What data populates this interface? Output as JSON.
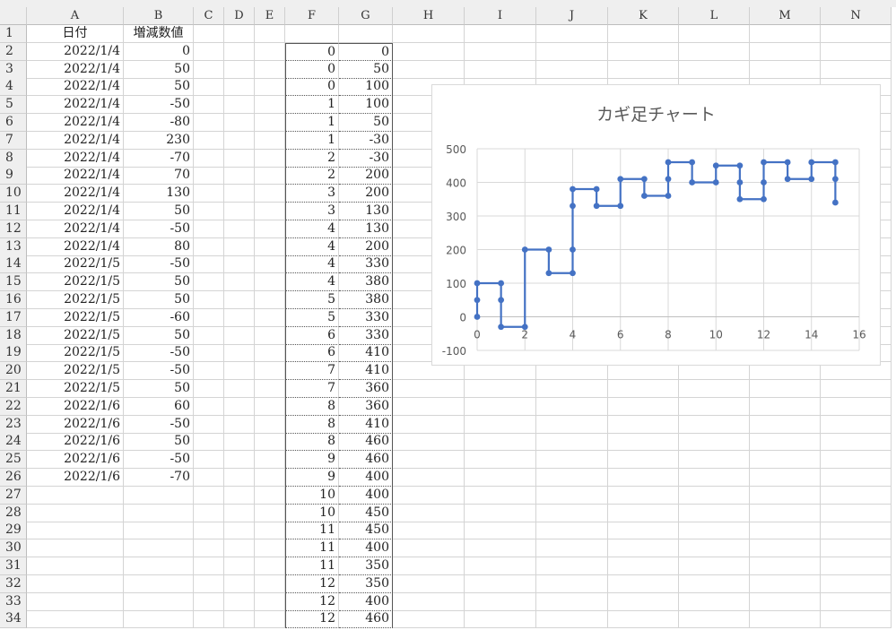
{
  "columns": [
    "A",
    "B",
    "C",
    "D",
    "E",
    "F",
    "G",
    "H",
    "I",
    "J",
    "K",
    "L",
    "M",
    "N"
  ],
  "headers": {
    "A": "日付",
    "B": "増減数値"
  },
  "rows_ab": [
    [
      "2022/1/4",
      "0"
    ],
    [
      "2022/1/4",
      "50"
    ],
    [
      "2022/1/4",
      "50"
    ],
    [
      "2022/1/4",
      "-50"
    ],
    [
      "2022/1/4",
      "-80"
    ],
    [
      "2022/1/4",
      "230"
    ],
    [
      "2022/1/4",
      "-70"
    ],
    [
      "2022/1/4",
      "70"
    ],
    [
      "2022/1/4",
      "130"
    ],
    [
      "2022/1/4",
      "50"
    ],
    [
      "2022/1/4",
      "-50"
    ],
    [
      "2022/1/4",
      "80"
    ],
    [
      "2022/1/5",
      "-50"
    ],
    [
      "2022/1/5",
      "50"
    ],
    [
      "2022/1/5",
      "50"
    ],
    [
      "2022/1/5",
      "-60"
    ],
    [
      "2022/1/5",
      "50"
    ],
    [
      "2022/1/5",
      "-50"
    ],
    [
      "2022/1/5",
      "-50"
    ],
    [
      "2022/1/5",
      "50"
    ],
    [
      "2022/1/6",
      "60"
    ],
    [
      "2022/1/6",
      "-50"
    ],
    [
      "2022/1/6",
      "50"
    ],
    [
      "2022/1/6",
      "-50"
    ],
    [
      "2022/1/6",
      "-70"
    ]
  ],
  "rows_fg": [
    [
      "0",
      "0"
    ],
    [
      "0",
      "50"
    ],
    [
      "0",
      "100"
    ],
    [
      "1",
      "100"
    ],
    [
      "1",
      "50"
    ],
    [
      "1",
      "-30"
    ],
    [
      "2",
      "-30"
    ],
    [
      "2",
      "200"
    ],
    [
      "3",
      "200"
    ],
    [
      "3",
      "130"
    ],
    [
      "4",
      "130"
    ],
    [
      "4",
      "200"
    ],
    [
      "4",
      "330"
    ],
    [
      "4",
      "380"
    ],
    [
      "5",
      "380"
    ],
    [
      "5",
      "330"
    ],
    [
      "6",
      "330"
    ],
    [
      "6",
      "410"
    ],
    [
      "7",
      "410"
    ],
    [
      "7",
      "360"
    ],
    [
      "8",
      "360"
    ],
    [
      "8",
      "410"
    ],
    [
      "8",
      "460"
    ],
    [
      "9",
      "460"
    ],
    [
      "9",
      "400"
    ],
    [
      "10",
      "400"
    ],
    [
      "10",
      "450"
    ],
    [
      "11",
      "450"
    ],
    [
      "11",
      "400"
    ],
    [
      "11",
      "350"
    ],
    [
      "12",
      "350"
    ],
    [
      "12",
      "400"
    ],
    [
      "12",
      "460"
    ]
  ],
  "chart_data": {
    "type": "scatter",
    "title": "カギ足チャート",
    "x": [
      0,
      0,
      0,
      1,
      1,
      1,
      2,
      2,
      3,
      3,
      4,
      4,
      4,
      4,
      5,
      5,
      6,
      6,
      7,
      7,
      8,
      8,
      8,
      9,
      9,
      10,
      10,
      11,
      11,
      11,
      12,
      12,
      12,
      13,
      13,
      14,
      14,
      15,
      15,
      15
    ],
    "y": [
      0,
      50,
      100,
      100,
      50,
      -30,
      -30,
      200,
      200,
      130,
      130,
      200,
      330,
      380,
      380,
      330,
      330,
      410,
      410,
      360,
      360,
      410,
      460,
      460,
      400,
      400,
      450,
      450,
      400,
      350,
      350,
      400,
      460,
      460,
      410,
      410,
      460,
      460,
      410,
      340
    ],
    "xlim": [
      0,
      16
    ],
    "ylim": [
      -100,
      500
    ],
    "xticks": [
      "0",
      "2",
      "4",
      "6",
      "8",
      "10",
      "12",
      "14",
      "16"
    ],
    "yticks": [
      "-100",
      "0",
      "100",
      "200",
      "300",
      "400",
      "500"
    ],
    "grid": true,
    "lines": true,
    "markers": true,
    "color": "#4472c4"
  }
}
